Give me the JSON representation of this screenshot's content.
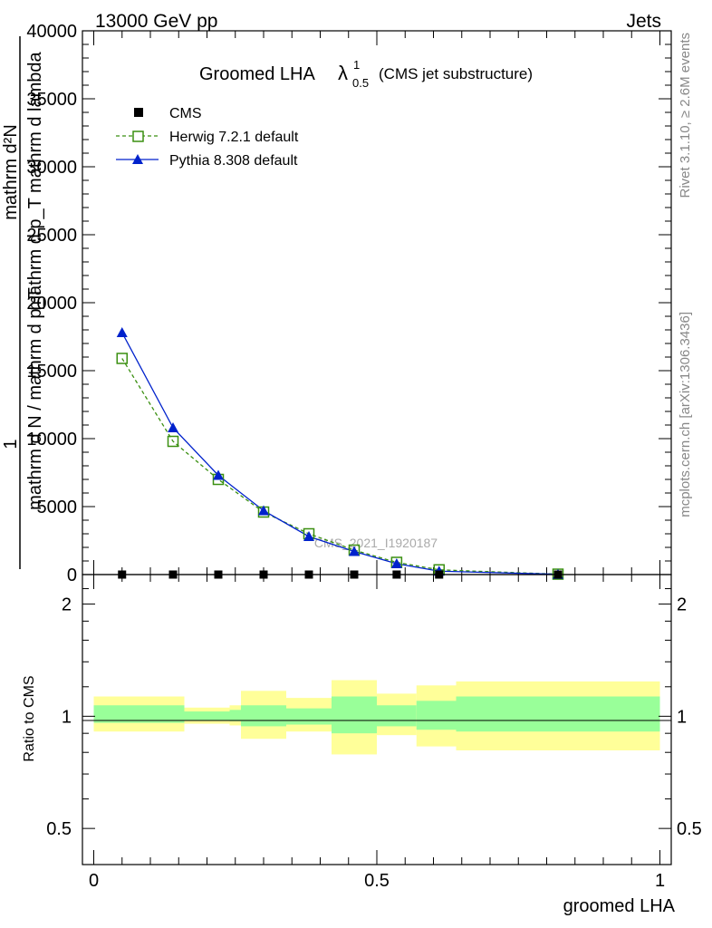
{
  "header": {
    "left": "13000 GeV pp",
    "right": "Jets"
  },
  "side_text": {
    "rivet": "Rivet 3.1.10, ≥ 2.6M events",
    "mcplots": "mcplots.cern.ch [arXiv:1306.3436]"
  },
  "watermark": "CMS_2021_I1920187",
  "main_title": {
    "text": "Groomed LHA",
    "lambda": "λ",
    "sup": "1",
    "sub": "0.5",
    "note": "(CMS jet substructure)"
  },
  "y_title_main": {
    "line1": "mathrm d²N",
    "line2": "mathrm d p_T mathrm d lambda",
    "line3": "1",
    "line4": "mathrm d N / mathrm d p_T"
  },
  "y_title_ratio": "Ratio to CMS",
  "x_title": "groomed LHA",
  "colors": {
    "cms": "#000000",
    "herwig": "#3a8f10",
    "pythia": "#0022cc",
    "band_outer": "#ffff99",
    "band_inner": "#99ff99"
  },
  "chart_data": [
    {
      "type": "line",
      "panel": "main",
      "ylim": [
        0,
        40000
      ],
      "xlim": [
        -0.02,
        1.02
      ],
      "y_ticks": [
        "0",
        "5000",
        "10000",
        "15000",
        "20000",
        "25000",
        "30000",
        "35000",
        "40000"
      ],
      "legend": [
        {
          "name": "CMS",
          "marker": "filled-square"
        },
        {
          "name": "Herwig 7.2.1 default",
          "marker": "open-square",
          "style": "dashed"
        },
        {
          "name": "Pythia 8.308 default",
          "marker": "filled-triangle",
          "style": "solid"
        }
      ],
      "series": [
        {
          "name": "CMS",
          "x": [
            0.05,
            0.14,
            0.22,
            0.3,
            0.38,
            0.46,
            0.535,
            0.61,
            0.82
          ],
          "y": [
            0,
            0,
            0,
            0,
            0,
            0,
            0,
            0,
            0
          ]
        },
        {
          "name": "Herwig 7.2.1 default",
          "x": [
            0.05,
            0.14,
            0.22,
            0.3,
            0.38,
            0.46,
            0.535,
            0.61,
            0.82
          ],
          "y": [
            15900,
            9800,
            7000,
            4600,
            3000,
            1800,
            900,
            350,
            30
          ]
        },
        {
          "name": "Pythia 8.308 default",
          "x": [
            0.05,
            0.14,
            0.22,
            0.3,
            0.38,
            0.46,
            0.535,
            0.61,
            0.82
          ],
          "y": [
            17800,
            10800,
            7300,
            4700,
            2800,
            1700,
            800,
            250,
            20
          ]
        }
      ]
    },
    {
      "type": "area",
      "panel": "ratio",
      "ylim": [
        0.4,
        2.4
      ],
      "y_scale": "log",
      "y_ticks": [
        "0.5",
        "1",
        "2"
      ],
      "x_ticks": [
        "0",
        "0.5",
        "1"
      ],
      "reference": 1,
      "bins": [
        {
          "x": [
            0.0,
            0.1
          ],
          "outer": [
            0.91,
            1.13
          ],
          "inner": [
            0.96,
            1.07
          ]
        },
        {
          "x": [
            0.1,
            0.16
          ],
          "outer": [
            0.91,
            1.13
          ],
          "inner": [
            0.96,
            1.07
          ]
        },
        {
          "x": [
            0.16,
            0.24
          ],
          "outer": [
            0.955,
            1.055
          ],
          "inner": [
            0.975,
            1.03
          ]
        },
        {
          "x": [
            0.24,
            0.26
          ],
          "outer": [
            0.945,
            1.07
          ],
          "inner": [
            0.97,
            1.04
          ]
        },
        {
          "x": [
            0.26,
            0.34
          ],
          "outer": [
            0.87,
            1.17
          ],
          "inner": [
            0.94,
            1.07
          ]
        },
        {
          "x": [
            0.34,
            0.42
          ],
          "outer": [
            0.91,
            1.12
          ],
          "inner": [
            0.95,
            1.05
          ]
        },
        {
          "x": [
            0.42,
            0.5
          ],
          "outer": [
            0.79,
            1.25
          ],
          "inner": [
            0.9,
            1.13
          ]
        },
        {
          "x": [
            0.5,
            0.57
          ],
          "outer": [
            0.89,
            1.15
          ],
          "inner": [
            0.94,
            1.07
          ]
        },
        {
          "x": [
            0.57,
            0.64
          ],
          "outer": [
            0.83,
            1.21
          ],
          "inner": [
            0.92,
            1.1
          ]
        },
        {
          "x": [
            0.64,
            1.0
          ],
          "outer": [
            0.81,
            1.24
          ],
          "inner": [
            0.91,
            1.13
          ]
        }
      ]
    }
  ]
}
